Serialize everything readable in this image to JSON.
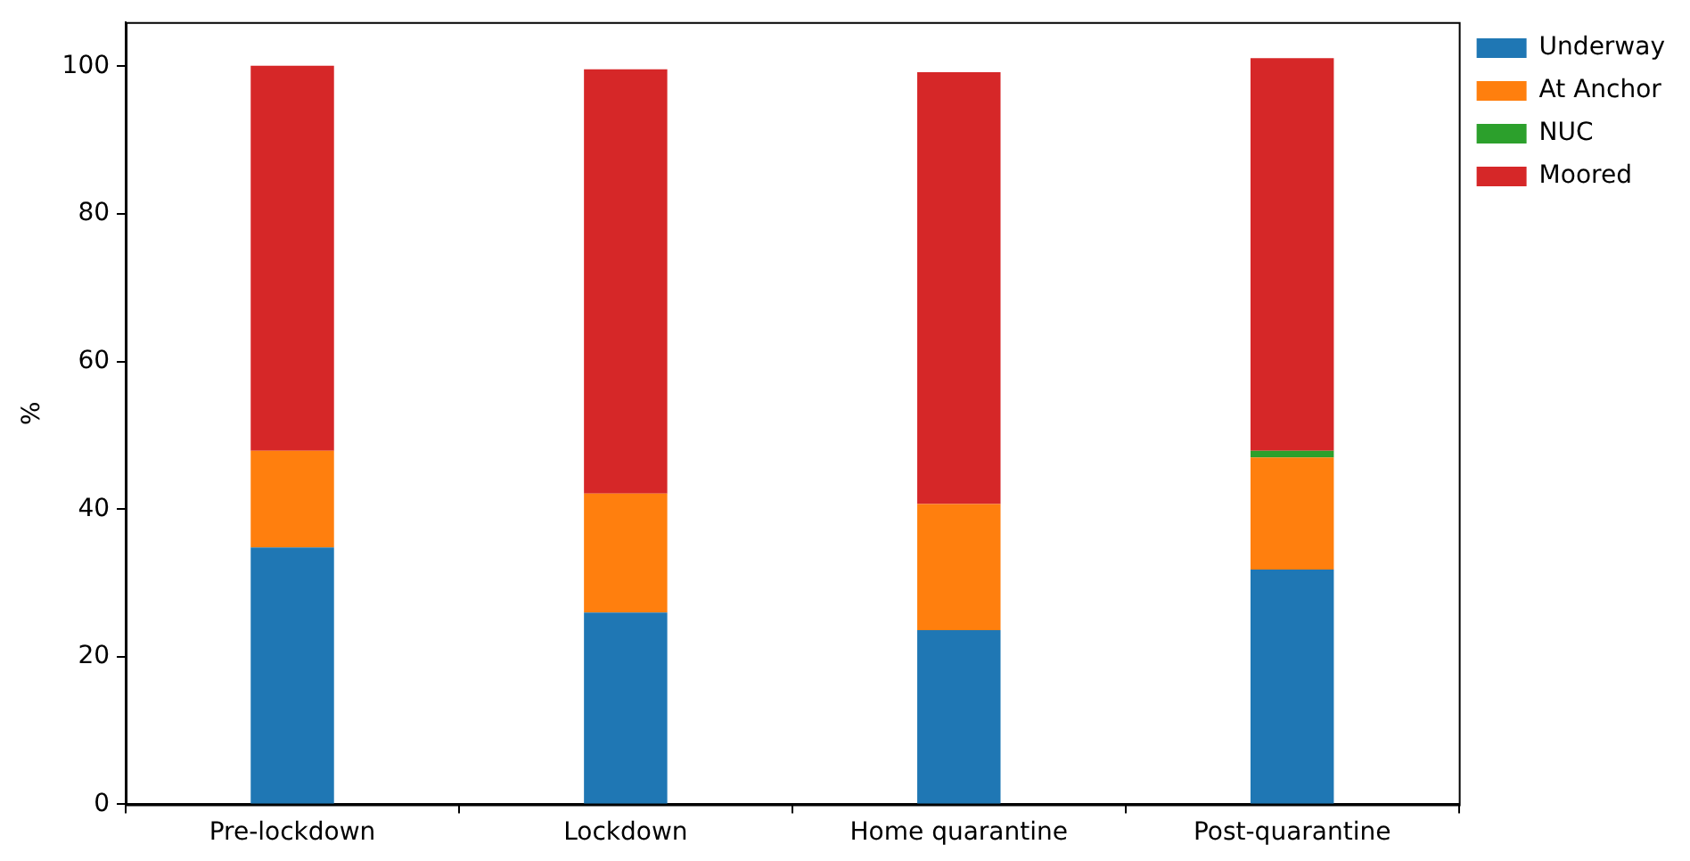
{
  "chart_data": {
    "type": "bar",
    "stacked": true,
    "ylabel": "%",
    "categories": [
      "Pre-lockdown",
      "Lockdown",
      "Home quarantine",
      "Post-quarantine"
    ],
    "series": [
      {
        "name": "Underway",
        "color": "#1f77b4",
        "values": [
          34.8,
          26.0,
          23.6,
          31.8
        ]
      },
      {
        "name": "At Anchor",
        "color": "#ff7f0e",
        "values": [
          13.1,
          16.1,
          17.1,
          15.2
        ]
      },
      {
        "name": "NUC",
        "color": "#2ca02c",
        "values": [
          0,
          0,
          0,
          0.9
        ]
      },
      {
        "name": "Moored",
        "color": "#d62728",
        "values": [
          52.2,
          57.5,
          58.5,
          53.2
        ]
      }
    ],
    "ylim": [
      0,
      106
    ],
    "yticks": [
      0,
      20,
      40,
      60,
      80,
      100
    ],
    "grid": false,
    "legend": "top right"
  }
}
